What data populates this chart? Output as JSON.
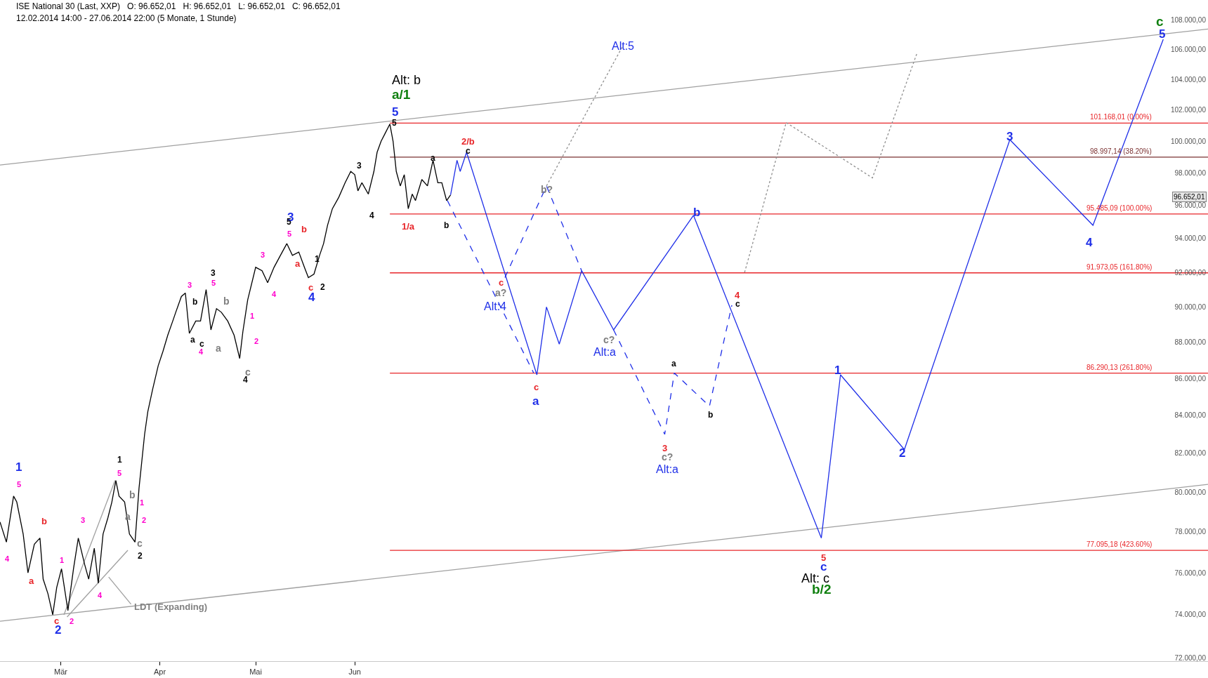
{
  "chart_data": {
    "type": "line",
    "title": "ISE National 30 (Last, XXP)   O: 96.652,01   H: 96.652,01   L: 96.652,01   C: 96.652,01",
    "subtitle": "12.02.2014 14:00 - 27.06.2014 22:00 (5 Monate, 1 Stunde)",
    "log": true,
    "legend": false,
    "marker": "none",
    "xlim": [
      "2014-02-10",
      "2015-02-23"
    ],
    "xticks": [
      {
        "value": "2014-03-01",
        "label": "Mär"
      },
      {
        "value": "2014-04-01",
        "label": "Apr"
      },
      {
        "value": "2014-05-01",
        "label": "Mai"
      },
      {
        "value": "2014-06-01",
        "label": "Jun"
      }
    ],
    "ylim": [
      71850,
      109400
    ],
    "yticks": [
      {
        "value": 72000,
        "label": "72.000,00"
      },
      {
        "value": 74000,
        "label": "74.000,00"
      },
      {
        "value": 76000,
        "label": "76.000,00"
      },
      {
        "value": 78000,
        "label": "78.000,00"
      },
      {
        "value": 80000,
        "label": "80.000,00"
      },
      {
        "value": 82000,
        "label": "82.000,00"
      },
      {
        "value": 84000,
        "label": "84.000,00"
      },
      {
        "value": 86000,
        "label": "86.000,00"
      },
      {
        "value": 88000,
        "label": "88.000,00"
      },
      {
        "value": 90000,
        "label": "90.000,00"
      },
      {
        "value": 92000,
        "label": "92.000,00"
      },
      {
        "value": 94000,
        "label": "94.000,00"
      },
      {
        "value": 96000,
        "label": "96.000,00"
      },
      {
        "value": 98000,
        "label": "98.000,00"
      },
      {
        "value": 100000,
        "label": "100.000,00"
      },
      {
        "value": 102000,
        "label": "102.000,00"
      },
      {
        "value": 104000,
        "label": "104.000,00"
      },
      {
        "value": 106000,
        "label": "106.000,00"
      },
      {
        "value": 108000,
        "label": "108.000,00"
      }
    ],
    "series": [
      {
        "color": "#a0a0a0",
        "line_style": "solid",
        "x": [
          "2014-02-10",
          "2015-02-23"
        ],
        "values": [
          98500,
          107400
        ]
      },
      {
        "color": "#a0a0a0",
        "line_style": "solid",
        "x": [
          "2014-02-10",
          "2015-02-23"
        ],
        "values": [
          73700,
          80400
        ]
      },
      {
        "color": "#a0a0a0",
        "line_style": "solid",
        "x": [
          "2014-03-02",
          "2014-03-18"
        ],
        "values": [
          74000,
          80600
        ]
      },
      {
        "color": "#a0a0a0",
        "line_style": "solid",
        "x": [
          "2014-03-03",
          "2014-03-22"
        ],
        "values": [
          73900,
          77100
        ]
      },
      {
        "color": "#a0a0a0",
        "line_style": "solid",
        "x": [
          "2014-03-16",
          "2014-03-23"
        ],
        "values": [
          75800,
          74500
        ]
      },
      {
        "color": "#e8262a",
        "line_style": "solid",
        "name": "101.168,01 (0.00%)",
        "x": [
          "2014-06-12",
          "2015-02-23"
        ],
        "values": [
          101168.01,
          101168.01
        ]
      },
      {
        "color": "#7a3030",
        "line_style": "solid",
        "name": "98.997,14 (38.20%)",
        "x": [
          "2014-06-12",
          "2015-02-23"
        ],
        "values": [
          98997.14,
          98997.14
        ]
      },
      {
        "color": "#e8262a",
        "line_style": "solid",
        "name": "95.485,09 (100.00%)",
        "x": [
          "2014-06-12",
          "2015-02-23"
        ],
        "values": [
          95485.09,
          95485.09
        ]
      },
      {
        "color": "#e8262a",
        "line_style": "solid",
        "name": "91.973,05 (161.80%)",
        "x": [
          "2014-06-12",
          "2015-02-23"
        ],
        "values": [
          91973.05,
          91973.05
        ]
      },
      {
        "color": "#e8262a",
        "line_style": "solid",
        "name": "86.290,13 (261.80%)",
        "x": [
          "2014-06-12",
          "2015-02-23"
        ],
        "values": [
          86290.13,
          86290.13
        ]
      },
      {
        "color": "#e8262a",
        "line_style": "solid",
        "name": "77.095,18 (423.60%)",
        "x": [
          "2014-06-12",
          "2015-02-23"
        ],
        "values": [
          77095.18,
          77095.18
        ]
      },
      {
        "color": "#000000",
        "line_style": "solid",
        "x": [
          "2014-02-10T00:00",
          "2014-02-12T00:00",
          "2014-02-14T06:00",
          "2014-02-15T06:00",
          "2014-02-17T06:00",
          "2014-02-18T18:00",
          "2014-02-20T18:00",
          "2014-02-22T12:00",
          "2014-02-23T12:00",
          "2014-02-25T00:00",
          "2014-02-26T12:00",
          "2014-02-27T18:00",
          "2014-03-01T06:00",
          "2014-03-03T06:00",
          "2014-03-05T00:00",
          "2014-03-06T12:00",
          "2014-03-08T12:00",
          "2014-03-09T18:00",
          "2014-03-11T12:00",
          "2014-03-12T18:00",
          "2014-03-14T06:00",
          "2014-03-15T18:00",
          "2014-03-17T00:00",
          "2014-03-18T06:00",
          "2014-03-19T06:00",
          "2014-03-21T00:00",
          "2014-03-22T12:00",
          "2014-03-24T06:00",
          "2014-03-25T12:00",
          "2014-03-27T06:00",
          "2014-03-28T06:00",
          "2014-03-29T18:00",
          "2014-03-31T12:00",
          "2014-04-02T00:00",
          "2014-04-03T12:00",
          "2014-04-05T06:00",
          "2014-04-06T00:00",
          "2014-04-07T18:00",
          "2014-04-09T00:00",
          "2014-04-10T06:00",
          "2014-04-12T06:00",
          "2014-04-13T18:00",
          "2014-04-15T12:00",
          "2014-04-17T00:00",
          "2014-04-18T18:00",
          "2014-04-20T06:00",
          "2014-04-22T06:00",
          "2014-04-24T06:00",
          "2014-04-26T00:00",
          "2014-04-27T00:00",
          "2014-04-28T12:00",
          "2014-05-01T00:00",
          "2014-05-03T00:00",
          "2014-05-04T18:00",
          "2014-05-06T18:00",
          "2014-05-08T18:00",
          "2014-05-10T18:00",
          "2014-05-12T12:00",
          "2014-05-14T12:00",
          "2014-05-16T06:00",
          "2014-05-17T12:00",
          "2014-05-19T06:00",
          "2014-05-21T00:00",
          "2014-05-22T06:00",
          "2014-05-23T12:00",
          "2014-05-25T00:00",
          "2014-05-27T00:00",
          "2014-05-29T00:00",
          "2014-05-30T18:00",
          "2014-06-01T00:00",
          "2014-06-02T00:00",
          "2014-06-03T06:00",
          "2014-06-05T06:00",
          "2014-06-07T00:00",
          "2014-06-08T00:00",
          "2014-06-09T06:00",
          "2014-06-10T12:00",
          "2014-06-12T00:00",
          "2014-06-13T00:00",
          "2014-06-14T00:00",
          "2014-06-15T06:00",
          "2014-06-16T12:00",
          "2014-06-17T18:00",
          "2014-06-19T00:00",
          "2014-06-20T00:00",
          "2014-06-22T00:00",
          "2014-06-23T18:00",
          "2014-06-25T12:00",
          "2014-06-27T00:00",
          "2014-06-28T06:00",
          "2014-06-29T18:00",
          "2014-07-01T00:00"
        ],
        "values": [
          78500,
          77500,
          79800,
          79500,
          77900,
          76000,
          77400,
          77700,
          75700,
          75000,
          74000,
          75300,
          76200,
          74200,
          76200,
          77700,
          76400,
          75700,
          77200,
          75500,
          77900,
          78700,
          79500,
          80600,
          79800,
          79500,
          77900,
          77500,
          80200,
          83000,
          84200,
          85400,
          86700,
          87500,
          88400,
          89300,
          89700,
          90600,
          90800,
          88500,
          89200,
          89200,
          91000,
          88700,
          89900,
          89700,
          89200,
          88400,
          87100,
          88600,
          90400,
          92300,
          92100,
          91400,
          92300,
          93000,
          93700,
          93000,
          93200,
          92300,
          91700,
          91900,
          93000,
          93700,
          94800,
          95800,
          96500,
          97400,
          98100,
          97900,
          96900,
          97400,
          96700,
          98100,
          99300,
          100000,
          100500,
          101100,
          100000,
          98100,
          97200,
          97900,
          95800,
          96700,
          96300,
          97600,
          97200,
          98800,
          97400,
          97400,
          96300,
          96652
        ]
      },
      {
        "color": "#1f2fe8",
        "line_style": "dashed",
        "x": [
          "2014-06-30",
          "2014-07-27"
        ],
        "values": [
          96300,
          86300
        ]
      },
      {
        "color": "#1f2fe8",
        "line_style": "dashed",
        "x": [
          "2014-07-18",
          "2014-07-31",
          "2014-08-11"
        ],
        "values": [
          91700,
          97200,
          92100
        ]
      },
      {
        "color": "#1f2fe8",
        "line_style": "dashed",
        "x": [
          "2014-08-21",
          "2014-09-06",
          "2014-09-09",
          "2014-09-20",
          "2014-09-27"
        ],
        "values": [
          88700,
          83000,
          86300,
          84500,
          90100
        ]
      },
      {
        "color": "#909090",
        "line_style": "dotted",
        "x": [
          "2014-07-31",
          "2014-08-24"
        ],
        "values": [
          97200,
          106300
        ]
      },
      {
        "color": "#909090",
        "line_style": "dotted",
        "x": [
          "2014-10-01",
          "2014-10-14",
          "2014-11-10",
          "2014-11-24"
        ],
        "values": [
          92000,
          101200,
          97700,
          105800
        ]
      },
      {
        "color": "#1f2fe8",
        "line_style": "solid",
        "x": [
          "2014-07-01",
          "2014-07-03",
          "2014-07-04",
          "2014-07-06",
          "2014-07-28",
          "2014-07-31",
          "2014-08-04",
          "2014-08-11",
          "2014-08-21",
          "2014-09-15",
          "2014-10-25",
          "2014-10-31",
          "2014-11-20",
          "2014-12-23",
          "2015-01-18",
          "2015-02-09"
        ],
        "values": [
          96652,
          98800,
          98100,
          99300,
          86200,
          90000,
          87900,
          92100,
          88700,
          95400,
          77700,
          86200,
          82200,
          100100,
          94800,
          106700
        ]
      }
    ],
    "annotations": [
      "1",
      "5",
      "b",
      "4",
      "a",
      "c",
      "2",
      "2",
      "1",
      "3",
      "4",
      "1",
      "5",
      "b",
      "a",
      "1",
      "2",
      "c",
      "2",
      "LDT (Expanding)",
      "3",
      "b",
      "a",
      "c",
      "4",
      "3",
      "5",
      "b",
      "a",
      "1",
      "2",
      "c",
      "4",
      "3",
      "4",
      "3",
      "5",
      "5",
      "b",
      "a",
      "1",
      "2",
      "c",
      "4",
      "3",
      "4",
      "Alt: b",
      "a/1",
      "5",
      "5",
      "1/a",
      "a",
      "b",
      "2/b",
      "c",
      "Alt:5",
      "b?",
      "c",
      "a?",
      "Alt:4",
      "c",
      "a",
      "c?",
      "Alt:a",
      "a",
      "b",
      "3",
      "c?",
      "Alt:a",
      "b",
      "4",
      "c",
      "1",
      "5",
      "c",
      "Alt: c",
      "b/2",
      "2",
      "3",
      "4",
      "c",
      "5",
      "96.652,01"
    ]
  }
}
